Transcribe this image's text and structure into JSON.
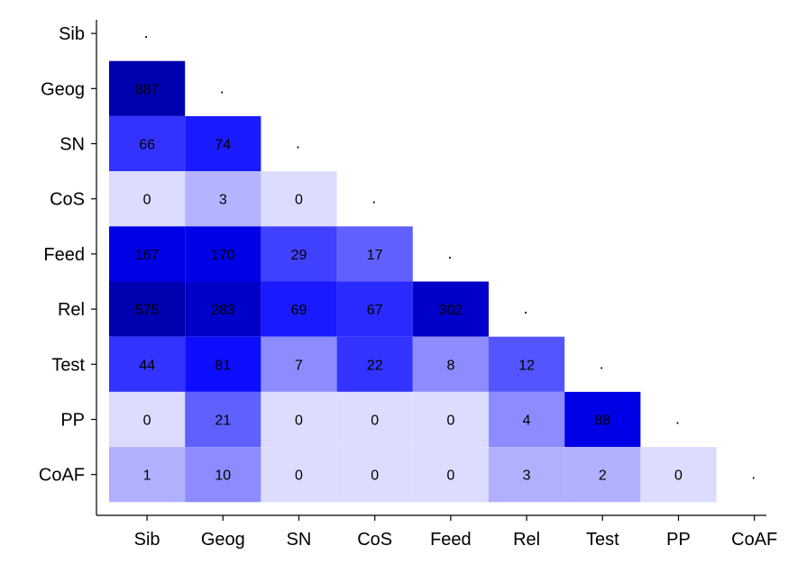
{
  "chart_data": {
    "type": "heatmap",
    "title": "",
    "xlabel": "",
    "ylabel": "",
    "labels": [
      "Sib",
      "Geog",
      "SN",
      "CoS",
      "Feed",
      "Rel",
      "Test",
      "PP",
      "CoAF"
    ],
    "diagonal_label": ".",
    "legend": "none",
    "grid": false,
    "cells": [
      {
        "row": "Geog",
        "col": "Sib",
        "value": 887,
        "color": "#0000b0"
      },
      {
        "row": "SN",
        "col": "Sib",
        "value": 66,
        "color": "#3333ff"
      },
      {
        "row": "SN",
        "col": "Geog",
        "value": 74,
        "color": "#1a1aff"
      },
      {
        "row": "CoS",
        "col": "Sib",
        "value": 0,
        "color": "#dcdcff"
      },
      {
        "row": "CoS",
        "col": "Geog",
        "value": 3,
        "color": "#b3b3ff"
      },
      {
        "row": "CoS",
        "col": "SN",
        "value": 0,
        "color": "#dcdcff"
      },
      {
        "row": "Feed",
        "col": "Sib",
        "value": 167,
        "color": "#0000e6"
      },
      {
        "row": "Feed",
        "col": "Geog",
        "value": 170,
        "color": "#0000e6"
      },
      {
        "row": "Feed",
        "col": "SN",
        "value": 29,
        "color": "#4040ff"
      },
      {
        "row": "Feed",
        "col": "CoS",
        "value": 17,
        "color": "#6060ff"
      },
      {
        "row": "Rel",
        "col": "Sib",
        "value": 575,
        "color": "#0000b0"
      },
      {
        "row": "Rel",
        "col": "Geog",
        "value": 283,
        "color": "#0000c8"
      },
      {
        "row": "Rel",
        "col": "SN",
        "value": 69,
        "color": "#1a1aff"
      },
      {
        "row": "Rel",
        "col": "CoS",
        "value": 67,
        "color": "#2a2aff"
      },
      {
        "row": "Rel",
        "col": "Feed",
        "value": 302,
        "color": "#0000c8"
      },
      {
        "row": "Test",
        "col": "Sib",
        "value": 44,
        "color": "#3333ff"
      },
      {
        "row": "Test",
        "col": "Geog",
        "value": 81,
        "color": "#0d0dff"
      },
      {
        "row": "Test",
        "col": "SN",
        "value": 7,
        "color": "#8c8cff"
      },
      {
        "row": "Test",
        "col": "CoS",
        "value": 22,
        "color": "#3333ff"
      },
      {
        "row": "Test",
        "col": "Feed",
        "value": 8,
        "color": "#8c8cff"
      },
      {
        "row": "Test",
        "col": "Rel",
        "value": 12,
        "color": "#5555ff"
      },
      {
        "row": "PP",
        "col": "Sib",
        "value": 0,
        "color": "#dcdcff"
      },
      {
        "row": "PP",
        "col": "Geog",
        "value": 21,
        "color": "#6060ff"
      },
      {
        "row": "PP",
        "col": "SN",
        "value": 0,
        "color": "#dcdcff"
      },
      {
        "row": "PP",
        "col": "CoS",
        "value": 0,
        "color": "#dcdcff"
      },
      {
        "row": "PP",
        "col": "Feed",
        "value": 0,
        "color": "#dcdcff"
      },
      {
        "row": "PP",
        "col": "Rel",
        "value": 4,
        "color": "#8c8cff"
      },
      {
        "row": "PP",
        "col": "Test",
        "value": 88,
        "color": "#0000e6"
      },
      {
        "row": "CoAF",
        "col": "Sib",
        "value": 1,
        "color": "#b0b0ff"
      },
      {
        "row": "CoAF",
        "col": "Geog",
        "value": 10,
        "color": "#8c8cff"
      },
      {
        "row": "CoAF",
        "col": "SN",
        "value": 0,
        "color": "#dcdcff"
      },
      {
        "row": "CoAF",
        "col": "CoS",
        "value": 0,
        "color": "#dcdcff"
      },
      {
        "row": "CoAF",
        "col": "Feed",
        "value": 0,
        "color": "#dcdcff"
      },
      {
        "row": "CoAF",
        "col": "Rel",
        "value": 3,
        "color": "#b0b0ff"
      },
      {
        "row": "CoAF",
        "col": "Test",
        "value": 2,
        "color": "#b0b0ff"
      },
      {
        "row": "CoAF",
        "col": "PP",
        "value": 0,
        "color": "#dcdcff"
      }
    ]
  }
}
